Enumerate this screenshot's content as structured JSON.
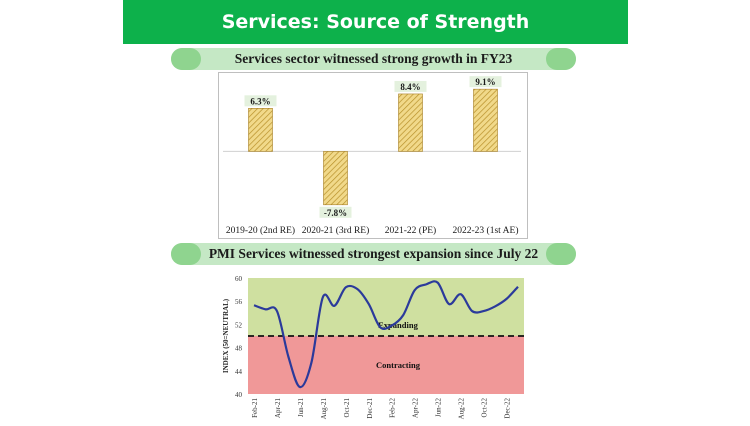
{
  "banner": {
    "title": "Services: Source of Strength"
  },
  "section1": {
    "heading": "Services sector witnessed strong growth in FY23"
  },
  "section2": {
    "heading": "PMI Services witnessed strongest expansion since July 22"
  },
  "colors": {
    "banner": "#0db14b",
    "bar": "#e8c060",
    "expanding": "#cfe0a0",
    "contracting": "#f09898",
    "line": "#2b3a9b"
  },
  "chart_data": [
    {
      "type": "bar",
      "title": "Services sector witnessed strong growth in FY23",
      "categories": [
        "2019-20 (2nd RE)",
        "2020-21 (3rd RE)",
        "2021-22 (PE)",
        "2022-23 (1st AE)"
      ],
      "values": [
        6.3,
        -7.8,
        8.4,
        9.1
      ],
      "labels": [
        "6.3%",
        "-7.8%",
        "8.4%",
        "9.1%"
      ],
      "ylim": [
        -9,
        10
      ]
    },
    {
      "type": "line",
      "title": "PMI Services witnessed strongest expansion since July 22",
      "ylabel": "INDEX (50=NEUTRAL)",
      "ylim": [
        40,
        60
      ],
      "yticks": [
        "40",
        "44",
        "48",
        "52",
        "56",
        "60"
      ],
      "xticks": [
        "Feb-21",
        "Apr-21",
        "Jun-21",
        "Aug-21",
        "Oct-21",
        "Dec-21",
        "Feb-22",
        "Apr-22",
        "Jun-22",
        "Aug-22",
        "Oct-22",
        "Dec-22"
      ],
      "neutral": 50,
      "regions": {
        "upper": "Expanding",
        "lower": "Contracting"
      },
      "series": [
        {
          "name": "PMI Services",
          "values": [
            55.3,
            54.6,
            54.3,
            46.4,
            41.2,
            45.4,
            56.7,
            55.2,
            58.4,
            58.1,
            55.5,
            51.5,
            51.8,
            53.6,
            57.9,
            58.9,
            59.2,
            55.5,
            57.2,
            54.3,
            54.3,
            55.1,
            56.4,
            58.5
          ]
        }
      ]
    }
  ]
}
